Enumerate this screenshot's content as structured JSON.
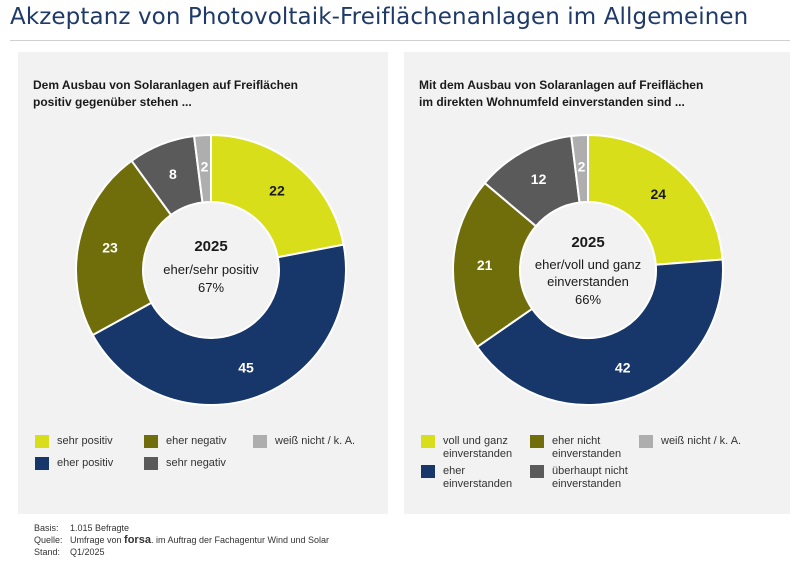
{
  "page": {
    "title": "Akzeptanz von Photovoltaik-Freiflächenanlagen im Allgemeinen"
  },
  "colors": {
    "yellow": "#d9de1a",
    "olive": "#6f6e0a",
    "navy": "#173669",
    "darkgray": "#5a5a5a",
    "lightgray": "#aeaeae"
  },
  "chart_data": [
    {
      "type": "pie",
      "subtitle": [
        "Dem Ausbau von Solaranlagen auf Freiflächen",
        "positiv gegenüber stehen ..."
      ],
      "center": {
        "year": "2025",
        "line1": "eher/sehr positiv",
        "line2": "67%"
      },
      "slices": [
        {
          "name": "sehr positiv",
          "value": 22,
          "label": "22",
          "color": "#d9de1a",
          "text": "#1a1a1a"
        },
        {
          "name": "eher positiv",
          "value": 45,
          "label": "45",
          "color": "#173669",
          "text": "#ffffff"
        },
        {
          "name": "eher negativ",
          "value": 23,
          "label": "23",
          "color": "#6f6e0a",
          "text": "#ffffff"
        },
        {
          "name": "sehr negativ",
          "value": 8,
          "label": "8",
          "color": "#5a5a5a",
          "text": "#ffffff"
        },
        {
          "name": "weiß nicht / k. A.",
          "value": 2,
          "label": "2",
          "color": "#aeaeae",
          "text": "#ffffff"
        }
      ],
      "legend": [
        {
          "label": [
            "sehr positiv"
          ],
          "color": "#d9de1a"
        },
        {
          "label": [
            "eher negativ"
          ],
          "color": "#6f6e0a"
        },
        {
          "label": [
            "weiß nicht / k. A."
          ],
          "color": "#aeaeae"
        },
        {
          "label": [
            "eher positiv"
          ],
          "color": "#173669"
        },
        {
          "label": [
            "sehr negativ"
          ],
          "color": "#5a5a5a"
        }
      ]
    },
    {
      "type": "pie",
      "subtitle": [
        "Mit dem Ausbau von Solaranlagen auf Freiflächen",
        "im direkten Wohnumfeld einverstanden sind ..."
      ],
      "center": {
        "year": "2025",
        "line1": "eher/voll und ganz",
        "line2": "einverstanden",
        "line3": "66%"
      },
      "slices": [
        {
          "name": "voll und ganz einverstanden",
          "value": 24,
          "label": "24",
          "color": "#d9de1a",
          "text": "#1a1a1a"
        },
        {
          "name": "eher einverstanden",
          "value": 42,
          "label": "42",
          "color": "#173669",
          "text": "#ffffff"
        },
        {
          "name": "eher nicht einverstanden",
          "value": 21,
          "label": "21",
          "color": "#6f6e0a",
          "text": "#ffffff"
        },
        {
          "name": "überhaupt nicht einverstanden",
          "value": 12,
          "label": "12",
          "color": "#5a5a5a",
          "text": "#ffffff"
        },
        {
          "name": "weiß nicht / k. A.",
          "value": 2,
          "label": "2",
          "color": "#aeaeae",
          "text": "#ffffff"
        }
      ],
      "legend": [
        {
          "label": [
            "voll und ganz",
            "einverstanden"
          ],
          "color": "#d9de1a"
        },
        {
          "label": [
            "eher nicht",
            "einverstanden"
          ],
          "color": "#6f6e0a"
        },
        {
          "label": [
            "weiß nicht / k. A."
          ],
          "color": "#aeaeae"
        },
        {
          "label": [
            "eher",
            "einverstanden"
          ],
          "color": "#173669"
        },
        {
          "label": [
            "überhaupt nicht",
            "einverstanden"
          ],
          "color": "#5a5a5a"
        }
      ]
    }
  ],
  "footer": {
    "basis_key": "Basis:",
    "basis_val": "1.015 Befragte",
    "quelle_key": "Quelle:",
    "quelle_pre": "Umfrage von",
    "quelle_brand": "forsa",
    "quelle_post": ". im Auftrag der Fachagentur Wind und Solar",
    "stand_key": "Stand:",
    "stand_val": "Q1/2025"
  }
}
